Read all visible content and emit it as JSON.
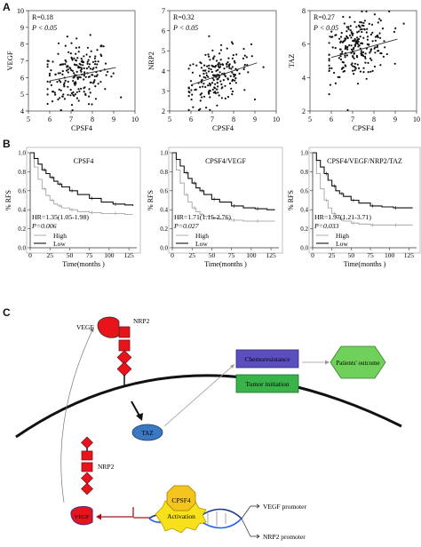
{
  "panel_labels": {
    "a": "A",
    "b": "B",
    "c": "C"
  },
  "chart_data": [
    {
      "type": "scatter",
      "xlabel": "CPSF4",
      "ylabel": "VEGF",
      "annotation_r": "R=0.18",
      "annotation_p": "P < 0.05",
      "xlim": [
        5,
        10
      ],
      "ylim": [
        4,
        10
      ],
      "xticks": [
        "5",
        "6",
        "7",
        "8",
        "9",
        "10"
      ],
      "yticks": [
        "4",
        "5",
        "6",
        "7",
        "8",
        "9",
        "10"
      ],
      "trend": {
        "x": [
          6.0,
          9.1
        ],
        "y": [
          5.8,
          6.6
        ]
      }
    },
    {
      "type": "scatter",
      "xlabel": "CPSF4",
      "ylabel": "NRP2",
      "annotation_r": "R=0.32",
      "annotation_p": "P < 0.05",
      "xlim": [
        5,
        10
      ],
      "ylim": [
        2,
        7
      ],
      "xticks": [
        "5",
        "6",
        "7",
        "8",
        "9",
        "10"
      ],
      "yticks": [
        "2",
        "3",
        "4",
        "5",
        "6",
        "7"
      ],
      "trend": {
        "x": [
          6.0,
          9.1
        ],
        "y": [
          3.3,
          4.4
        ]
      }
    },
    {
      "type": "scatter",
      "xlabel": "CPSF4",
      "ylabel": "TAZ",
      "annotation_r": "R=0.27",
      "annotation_p": "P < 0.05",
      "xlim": [
        5,
        10
      ],
      "ylim": [
        2,
        8
      ],
      "xticks": [
        "5",
        "6",
        "7",
        "8",
        "9",
        "10"
      ],
      "yticks": [
        "2",
        "4",
        "6",
        "8"
      ],
      "trend": {
        "x": [
          6.0,
          9.1
        ],
        "y": [
          5.2,
          6.3
        ]
      }
    },
    {
      "type": "line",
      "title": "CPSF4",
      "ylabel": "% RFS",
      "xlabel": "Time(months )",
      "xlim": [
        0,
        135
      ],
      "ylim": [
        0,
        1.0
      ],
      "xticks": [
        "0",
        "25",
        "50",
        "75",
        "100",
        "125"
      ],
      "yticks": [
        "0.0",
        "0.2",
        "0.4",
        "0.6",
        "0.8",
        "1.0"
      ],
      "hr": "HR=1.35(1.05-1.98)",
      "p": "P=0.006",
      "legend": [
        "High",
        "Low"
      ],
      "series": [
        {
          "name": "High",
          "x": [
            0,
            5,
            10,
            15,
            20,
            25,
            30,
            35,
            40,
            50,
            60,
            75,
            90,
            105,
            120,
            130
          ],
          "y": [
            1.0,
            0.85,
            0.72,
            0.62,
            0.55,
            0.5,
            0.46,
            0.44,
            0.42,
            0.4,
            0.38,
            0.37,
            0.36,
            0.36,
            0.35,
            0.35
          ]
        },
        {
          "name": "Low",
          "x": [
            0,
            5,
            10,
            15,
            20,
            25,
            30,
            35,
            40,
            50,
            60,
            75,
            90,
            105,
            120,
            130
          ],
          "y": [
            1.0,
            0.94,
            0.88,
            0.82,
            0.78,
            0.74,
            0.7,
            0.67,
            0.64,
            0.6,
            0.56,
            0.52,
            0.48,
            0.46,
            0.45,
            0.44
          ]
        }
      ]
    },
    {
      "type": "line",
      "title": "CPSF4/VEGF",
      "ylabel": "% RFS",
      "xlabel": "Time(months )",
      "xlim": [
        0,
        135
      ],
      "ylim": [
        0,
        1.0
      ],
      "xticks": [
        "0",
        "25",
        "50",
        "75",
        "100",
        "125"
      ],
      "yticks": [
        "0.0",
        "0.2",
        "0.4",
        "0.6",
        "0.8",
        "1.0"
      ],
      "hr": "HR=1.71(1.15-2.76)",
      "p": "P=0.027",
      "legend": [
        "High",
        "Low"
      ],
      "series": [
        {
          "name": "High",
          "x": [
            0,
            5,
            10,
            15,
            20,
            25,
            30,
            35,
            40,
            50,
            60,
            75,
            90,
            105,
            120,
            130
          ],
          "y": [
            1.0,
            0.82,
            0.68,
            0.56,
            0.48,
            0.42,
            0.38,
            0.35,
            0.33,
            0.31,
            0.3,
            0.29,
            0.28,
            0.28,
            0.28,
            0.28
          ]
        },
        {
          "name": "Low",
          "x": [
            0,
            5,
            10,
            15,
            20,
            25,
            30,
            35,
            40,
            50,
            60,
            75,
            90,
            105,
            120,
            130
          ],
          "y": [
            1.0,
            0.93,
            0.86,
            0.79,
            0.73,
            0.68,
            0.63,
            0.6,
            0.56,
            0.51,
            0.48,
            0.44,
            0.42,
            0.41,
            0.4,
            0.4
          ]
        }
      ]
    },
    {
      "type": "line",
      "title": "CPSF4/VEGF/NRP2/TAZ",
      "ylabel": "% RFS",
      "xlabel": "Time(months )",
      "xlim": [
        0,
        135
      ],
      "ylim": [
        0,
        1.0
      ],
      "xticks": [
        "0",
        "25",
        "50",
        "75",
        "100",
        "125"
      ],
      "yticks": [
        "0.0",
        "0.2",
        "0.4",
        "0.6",
        "0.8",
        "1.0"
      ],
      "hr": "HR=1.97(1.21-3.71)",
      "p": "P=0.033",
      "legend": [
        "High",
        "Low"
      ],
      "series": [
        {
          "name": "High",
          "x": [
            0,
            5,
            10,
            15,
            20,
            25,
            30,
            35,
            40,
            50,
            60,
            75,
            90,
            105,
            120,
            130
          ],
          "y": [
            1.0,
            0.78,
            0.62,
            0.5,
            0.42,
            0.36,
            0.32,
            0.3,
            0.28,
            0.26,
            0.25,
            0.24,
            0.24,
            0.24,
            0.24,
            0.24
          ]
        },
        {
          "name": "Low",
          "x": [
            0,
            5,
            10,
            15,
            20,
            25,
            30,
            35,
            40,
            50,
            60,
            75,
            90,
            105,
            120,
            130
          ],
          "y": [
            1.0,
            0.92,
            0.85,
            0.78,
            0.71,
            0.65,
            0.6,
            0.57,
            0.54,
            0.5,
            0.47,
            0.44,
            0.43,
            0.42,
            0.42,
            0.42
          ]
        }
      ]
    }
  ],
  "diagram": {
    "vegf_top": "VEGF",
    "nrp2_top": "NRP2",
    "taz": "TAZ",
    "nrp2_bottom": "NRP2",
    "vegf_bottom": "VEGF",
    "cpsf4": "CPSF4",
    "activation": "Activation",
    "vegf_promoter": "VEGF promoter",
    "nrp2_promoter": "NRP2 promoter",
    "chemoresistance": "Chemoresistance",
    "tumor_initiation": "Tumor initiation",
    "outcome": "Patients' outcome",
    "colors": {
      "vegf_red": "#e8141a",
      "nrp2_red": "#e8141a",
      "taz_blue": "#3a78c4",
      "chemo_purple": "#5b4fbf",
      "tumor_green": "#3ab34a",
      "outcome_green": "#6fd15a",
      "cpsf4_yellow": "#f4c51c",
      "activation_yellow": "#f7e11a",
      "dark_red_arrow": "#a4161a"
    }
  }
}
